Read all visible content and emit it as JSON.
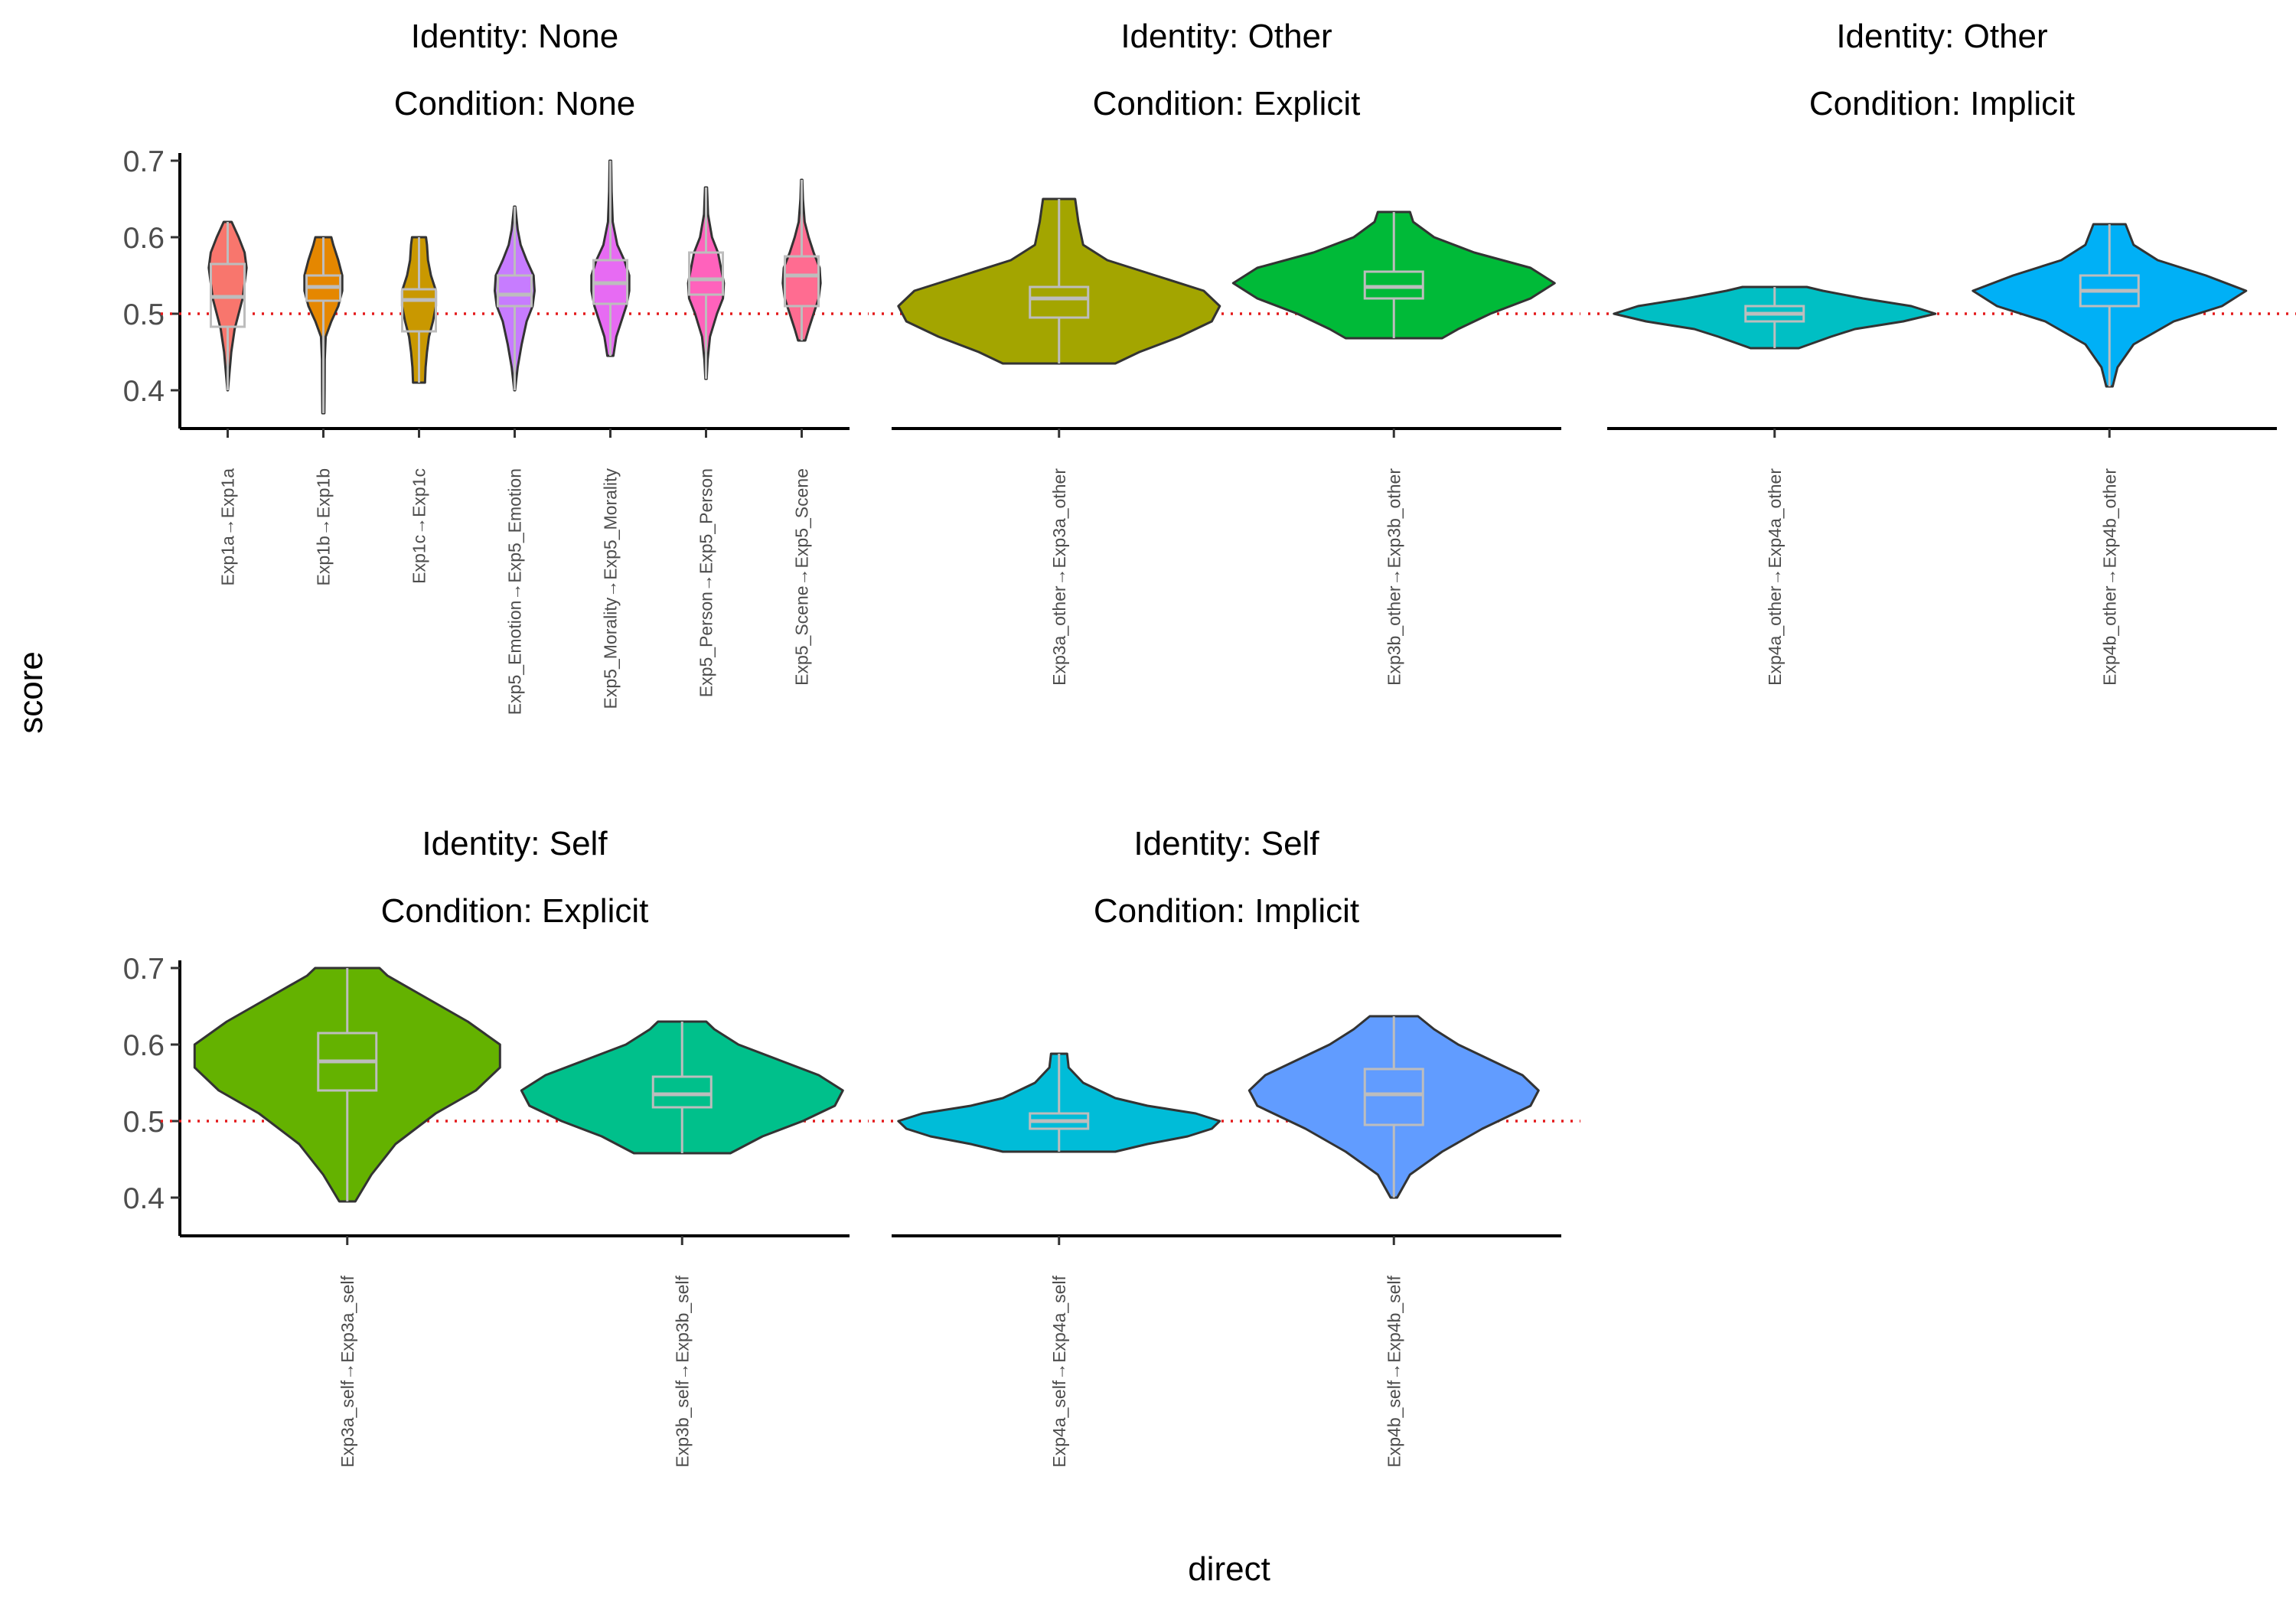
{
  "chart_data": {
    "type": "violin",
    "xlabel": "direct",
    "ylabel": "score",
    "ylim": [
      0.35,
      0.71
    ],
    "yticks": [
      0.4,
      0.5,
      0.6,
      0.7
    ],
    "reference_line": 0.5,
    "reference_color": "#e41a1c",
    "panels": [
      {
        "identity": "Identity: None",
        "condition": "Condition: None",
        "categories": [
          {
            "label": "Exp1a→Exp1a",
            "color": "#F8766D",
            "min": 0.4,
            "q1": 0.483,
            "median": 0.522,
            "q3": 0.565,
            "max": 0.62,
            "density": [
              [
                0.4,
                0.01
              ],
              [
                0.42,
                0.08
              ],
              [
                0.45,
                0.18
              ],
              [
                0.48,
                0.35
              ],
              [
                0.5,
                0.55
              ],
              [
                0.52,
                0.75
              ],
              [
                0.54,
                0.85
              ],
              [
                0.56,
                0.95
              ],
              [
                0.58,
                0.85
              ],
              [
                0.6,
                0.55
              ],
              [
                0.62,
                0.2
              ]
            ]
          },
          {
            "label": "Exp1b→Exp1b",
            "color": "#E58700",
            "min": 0.37,
            "q1": 0.517,
            "median": 0.535,
            "q3": 0.55,
            "max": 0.6,
            "density": [
              [
                0.37,
                0.05
              ],
              [
                0.4,
                0.06
              ],
              [
                0.44,
                0.07
              ],
              [
                0.47,
                0.12
              ],
              [
                0.49,
                0.4
              ],
              [
                0.51,
                0.75
              ],
              [
                0.53,
                0.95
              ],
              [
                0.55,
                0.95
              ],
              [
                0.57,
                0.75
              ],
              [
                0.59,
                0.5
              ],
              [
                0.6,
                0.4
              ]
            ]
          },
          {
            "label": "Exp1c→Exp1c",
            "color": "#C99800",
            "min": 0.41,
            "q1": 0.477,
            "median": 0.518,
            "q3": 0.532,
            "max": 0.6,
            "density": [
              [
                0.41,
                0.3
              ],
              [
                0.43,
                0.33
              ],
              [
                0.45,
                0.4
              ],
              [
                0.47,
                0.5
              ],
              [
                0.49,
                0.7
              ],
              [
                0.51,
                0.85
              ],
              [
                0.53,
                0.85
              ],
              [
                0.55,
                0.6
              ],
              [
                0.57,
                0.45
              ],
              [
                0.59,
                0.4
              ],
              [
                0.6,
                0.35
              ]
            ]
          },
          {
            "label": "Exp5_Emotion→Exp5_Emotion",
            "color": "#A3A500",
            "fill": "#C77CFF",
            "min": 0.4,
            "q1": 0.51,
            "median": 0.525,
            "q3": 0.55,
            "max": 0.64,
            "density": [
              [
                0.4,
                0.02
              ],
              [
                0.43,
                0.15
              ],
              [
                0.46,
                0.35
              ],
              [
                0.49,
                0.6
              ],
              [
                0.51,
                0.9
              ],
              [
                0.53,
                1.0
              ],
              [
                0.55,
                0.95
              ],
              [
                0.57,
                0.6
              ],
              [
                0.59,
                0.3
              ],
              [
                0.61,
                0.15
              ],
              [
                0.64,
                0.03
              ]
            ]
          }
        ]
      }
    ]
  },
  "panels": [
    {
      "identity": "Identity: None",
      "condition": "Condition: None",
      "violins": [
        {
          "label": "Exp1a→Exp1a",
          "fill": "#F8766D",
          "min": 0.4,
          "q1": 0.483,
          "median": 0.522,
          "q3": 0.565,
          "max": 0.62,
          "density": [
            [
              0.4,
              0.01
            ],
            [
              0.42,
              0.08
            ],
            [
              0.45,
              0.18
            ],
            [
              0.48,
              0.35
            ],
            [
              0.5,
              0.55
            ],
            [
              0.52,
              0.75
            ],
            [
              0.54,
              0.85
            ],
            [
              0.56,
              0.95
            ],
            [
              0.58,
              0.85
            ],
            [
              0.6,
              0.55
            ],
            [
              0.62,
              0.2
            ]
          ]
        },
        {
          "label": "Exp1b→Exp1b",
          "fill": "#E58700",
          "min": 0.37,
          "q1": 0.517,
          "median": 0.535,
          "q3": 0.55,
          "max": 0.6,
          "density": [
            [
              0.37,
              0.05
            ],
            [
              0.4,
              0.06
            ],
            [
              0.44,
              0.07
            ],
            [
              0.47,
              0.12
            ],
            [
              0.49,
              0.4
            ],
            [
              0.51,
              0.75
            ],
            [
              0.53,
              0.95
            ],
            [
              0.55,
              0.95
            ],
            [
              0.57,
              0.75
            ],
            [
              0.59,
              0.5
            ],
            [
              0.6,
              0.4
            ]
          ]
        },
        {
          "label": "Exp1c→Exp1c",
          "fill": "#C99800",
          "min": 0.41,
          "q1": 0.477,
          "median": 0.518,
          "q3": 0.532,
          "max": 0.6,
          "density": [
            [
              0.41,
              0.3
            ],
            [
              0.43,
              0.33
            ],
            [
              0.45,
              0.4
            ],
            [
              0.47,
              0.5
            ],
            [
              0.49,
              0.7
            ],
            [
              0.51,
              0.85
            ],
            [
              0.53,
              0.85
            ],
            [
              0.55,
              0.6
            ],
            [
              0.57,
              0.45
            ],
            [
              0.59,
              0.4
            ],
            [
              0.6,
              0.35
            ]
          ]
        },
        {
          "label": "Exp5_Emotion→Exp5_Emotion",
          "fill": "#C77CFF",
          "min": 0.4,
          "q1": 0.51,
          "median": 0.525,
          "q3": 0.55,
          "max": 0.64,
          "density": [
            [
              0.4,
              0.02
            ],
            [
              0.43,
              0.15
            ],
            [
              0.46,
              0.35
            ],
            [
              0.49,
              0.6
            ],
            [
              0.51,
              0.9
            ],
            [
              0.53,
              1.0
            ],
            [
              0.55,
              0.95
            ],
            [
              0.57,
              0.6
            ],
            [
              0.59,
              0.3
            ],
            [
              0.61,
              0.15
            ],
            [
              0.64,
              0.03
            ]
          ]
        },
        {
          "label": "Exp5_Morality→Exp5_Morality",
          "fill": "#E76BF3",
          "min": 0.445,
          "q1": 0.513,
          "median": 0.54,
          "q3": 0.57,
          "max": 0.7,
          "density": [
            [
              0.445,
              0.15
            ],
            [
              0.47,
              0.3
            ],
            [
              0.49,
              0.55
            ],
            [
              0.51,
              0.8
            ],
            [
              0.53,
              0.95
            ],
            [
              0.55,
              0.95
            ],
            [
              0.57,
              0.7
            ],
            [
              0.59,
              0.35
            ],
            [
              0.62,
              0.12
            ],
            [
              0.66,
              0.06
            ],
            [
              0.7,
              0.04
            ]
          ]
        },
        {
          "label": "Exp5_Person→Exp5_Person",
          "fill": "#FF62BC",
          "min": 0.415,
          "q1": 0.525,
          "median": 0.545,
          "q3": 0.58,
          "max": 0.665,
          "density": [
            [
              0.415,
              0.03
            ],
            [
              0.44,
              0.08
            ],
            [
              0.47,
              0.2
            ],
            [
              0.5,
              0.55
            ],
            [
              0.52,
              0.85
            ],
            [
              0.54,
              0.9
            ],
            [
              0.56,
              0.75
            ],
            [
              0.58,
              0.6
            ],
            [
              0.6,
              0.3
            ],
            [
              0.63,
              0.1
            ],
            [
              0.665,
              0.05
            ]
          ]
        },
        {
          "label": "Exp5_Scene→Exp5_Scene",
          "fill": "#FF6C91",
          "min": 0.465,
          "q1": 0.51,
          "median": 0.55,
          "q3": 0.575,
          "max": 0.675,
          "density": [
            [
              0.465,
              0.18
            ],
            [
              0.48,
              0.35
            ],
            [
              0.5,
              0.6
            ],
            [
              0.52,
              0.85
            ],
            [
              0.54,
              0.95
            ],
            [
              0.56,
              0.9
            ],
            [
              0.58,
              0.6
            ],
            [
              0.6,
              0.35
            ],
            [
              0.62,
              0.15
            ],
            [
              0.65,
              0.06
            ],
            [
              0.675,
              0.03
            ]
          ]
        }
      ]
    },
    {
      "identity": "Identity: Other",
      "condition": "Condition: Explicit",
      "violins": [
        {
          "label": "Exp3a_other→Exp3a_other",
          "fill": "#A3A500",
          "min": 0.435,
          "q1": 0.495,
          "median": 0.52,
          "q3": 0.535,
          "max": 0.65,
          "density": [
            [
              0.435,
              0.35
            ],
            [
              0.45,
              0.5
            ],
            [
              0.47,
              0.75
            ],
            [
              0.49,
              0.95
            ],
            [
              0.51,
              1.0
            ],
            [
              0.53,
              0.9
            ],
            [
              0.55,
              0.6
            ],
            [
              0.57,
              0.3
            ],
            [
              0.59,
              0.15
            ],
            [
              0.62,
              0.12
            ],
            [
              0.65,
              0.1
            ]
          ]
        },
        {
          "label": "Exp3b_other→Exp3b_other",
          "fill": "#00BA38",
          "min": 0.468,
          "q1": 0.52,
          "median": 0.535,
          "q3": 0.555,
          "max": 0.633,
          "density": [
            [
              0.468,
              0.3
            ],
            [
              0.48,
              0.4
            ],
            [
              0.5,
              0.6
            ],
            [
              0.52,
              0.85
            ],
            [
              0.54,
              1.0
            ],
            [
              0.56,
              0.85
            ],
            [
              0.58,
              0.5
            ],
            [
              0.6,
              0.25
            ],
            [
              0.62,
              0.12
            ],
            [
              0.633,
              0.1
            ]
          ]
        }
      ]
    },
    {
      "identity": "Identity: Other",
      "condition": "Condition: Implicit",
      "violins": [
        {
          "label": "Exp4a_other→Exp4a_other",
          "fill": "#00BFC4",
          "min": 0.455,
          "q1": 0.49,
          "median": 0.5,
          "q3": 0.51,
          "max": 0.535,
          "density": [
            [
              0.455,
              0.15
            ],
            [
              0.47,
              0.35
            ],
            [
              0.48,
              0.5
            ],
            [
              0.49,
              0.8
            ],
            [
              0.5,
              1.0
            ],
            [
              0.51,
              0.85
            ],
            [
              0.52,
              0.55
            ],
            [
              0.53,
              0.3
            ],
            [
              0.535,
              0.2
            ]
          ]
        },
        {
          "label": "Exp4b_other→Exp4b_other",
          "fill": "#00B0F6",
          "min": 0.405,
          "q1": 0.51,
          "median": 0.53,
          "q3": 0.55,
          "max": 0.617,
          "density": [
            [
              0.405,
              0.02
            ],
            [
              0.43,
              0.05
            ],
            [
              0.46,
              0.15
            ],
            [
              0.49,
              0.4
            ],
            [
              0.51,
              0.7
            ],
            [
              0.53,
              0.85
            ],
            [
              0.55,
              0.6
            ],
            [
              0.57,
              0.3
            ],
            [
              0.59,
              0.15
            ],
            [
              0.617,
              0.1
            ]
          ]
        }
      ]
    },
    {
      "identity": "Identity: Self",
      "condition": "Condition: Explicit",
      "violins": [
        {
          "label": "Exp3a_self→Exp3a_self",
          "fill": "#64B200",
          "min": 0.395,
          "q1": 0.54,
          "median": 0.578,
          "q3": 0.615,
          "max": 0.7,
          "density": [
            [
              0.395,
              0.05
            ],
            [
              0.43,
              0.15
            ],
            [
              0.47,
              0.3
            ],
            [
              0.51,
              0.55
            ],
            [
              0.54,
              0.8
            ],
            [
              0.57,
              0.95
            ],
            [
              0.6,
              0.95
            ],
            [
              0.63,
              0.75
            ],
            [
              0.66,
              0.5
            ],
            [
              0.69,
              0.25
            ],
            [
              0.7,
              0.2
            ]
          ]
        },
        {
          "label": "Exp3b_self→Exp3b_self",
          "fill": "#00C08B",
          "min": 0.458,
          "q1": 0.518,
          "median": 0.535,
          "q3": 0.558,
          "max": 0.63,
          "density": [
            [
              0.458,
              0.3
            ],
            [
              0.48,
              0.5
            ],
            [
              0.5,
              0.75
            ],
            [
              0.52,
              0.95
            ],
            [
              0.54,
              1.0
            ],
            [
              0.56,
              0.85
            ],
            [
              0.58,
              0.6
            ],
            [
              0.6,
              0.35
            ],
            [
              0.62,
              0.2
            ],
            [
              0.63,
              0.15
            ]
          ]
        }
      ]
    },
    {
      "identity": "Identity: Self",
      "condition": "Condition: Implicit",
      "violins": [
        {
          "label": "Exp4a_self→Exp4a_self",
          "fill": "#00BCD8",
          "min": 0.46,
          "q1": 0.49,
          "median": 0.5,
          "q3": 0.51,
          "max": 0.588,
          "density": [
            [
              0.46,
              0.35
            ],
            [
              0.47,
              0.55
            ],
            [
              0.48,
              0.8
            ],
            [
              0.49,
              0.95
            ],
            [
              0.5,
              1.0
            ],
            [
              0.51,
              0.85
            ],
            [
              0.52,
              0.55
            ],
            [
              0.53,
              0.35
            ],
            [
              0.55,
              0.15
            ],
            [
              0.57,
              0.06
            ],
            [
              0.588,
              0.05
            ]
          ]
        },
        {
          "label": "Exp4b_self→Exp4b_self",
          "fill": "#619CFF",
          "min": 0.4,
          "q1": 0.495,
          "median": 0.535,
          "q3": 0.568,
          "max": 0.637,
          "density": [
            [
              0.4,
              0.02
            ],
            [
              0.43,
              0.1
            ],
            [
              0.46,
              0.3
            ],
            [
              0.49,
              0.55
            ],
            [
              0.52,
              0.85
            ],
            [
              0.54,
              0.9
            ],
            [
              0.56,
              0.8
            ],
            [
              0.58,
              0.6
            ],
            [
              0.6,
              0.4
            ],
            [
              0.62,
              0.25
            ],
            [
              0.637,
              0.15
            ]
          ]
        }
      ]
    }
  ]
}
